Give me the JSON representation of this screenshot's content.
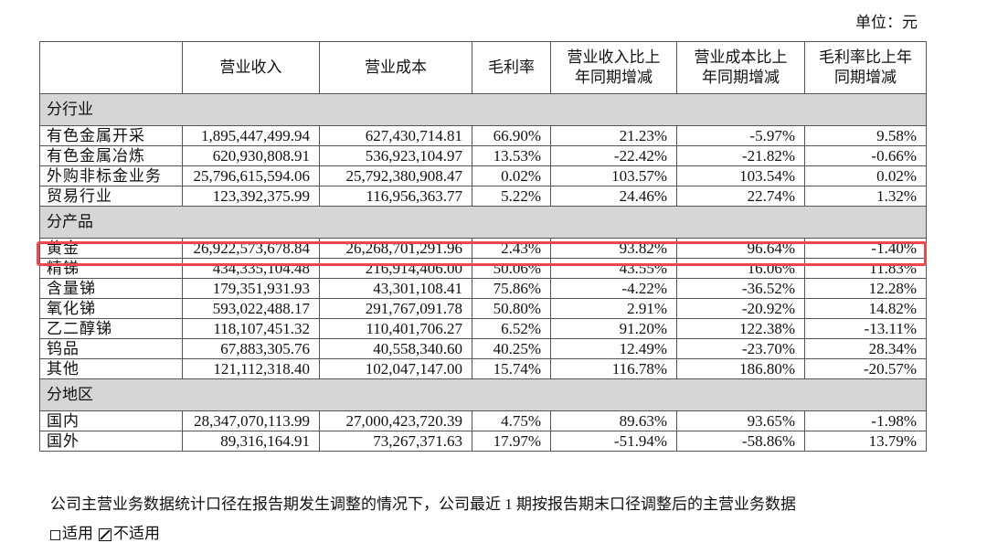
{
  "unit_label": "单位：元",
  "table": {
    "headers": [
      "",
      "营业收入",
      "营业成本",
      "毛利率",
      "营业收入比上年同期增减",
      "营业成本比上年同期增减",
      "毛利率比上年同期增减"
    ],
    "header_lines": [
      {
        "l1": "",
        "l2": ""
      },
      {
        "l1": "营业收入",
        "l2": ""
      },
      {
        "l1": "营业成本",
        "l2": ""
      },
      {
        "l1": "毛利率",
        "l2": ""
      },
      {
        "l1": "营业收入比上",
        "l2": "年同期增减"
      },
      {
        "l1": "营业成本比上",
        "l2": "年同期增减"
      },
      {
        "l1": "毛利率比上年",
        "l2": "同期增减"
      }
    ],
    "groups": [
      {
        "title": "分行业",
        "rows": [
          [
            "有色金属开采",
            "1,895,447,499.94",
            "627,430,714.81",
            "66.90%",
            "21.23%",
            "-5.97%",
            "9.58%"
          ],
          [
            "有色金属冶炼",
            "620,930,808.91",
            "536,923,104.97",
            "13.53%",
            "-22.42%",
            "-21.82%",
            "-0.66%"
          ],
          [
            "外购非标金业务",
            "25,796,615,594.06",
            "25,792,380,908.47",
            "0.02%",
            "103.57%",
            "103.54%",
            "0.02%"
          ],
          [
            "贸易行业",
            "123,392,375.99",
            "116,956,363.77",
            "5.22%",
            "24.46%",
            "22.74%",
            "1.32%"
          ]
        ]
      },
      {
        "title": "分产品",
        "rows": [
          [
            "黄金",
            "26,922,573,678.84",
            "26,268,701,291.96",
            "2.43%",
            "93.82%",
            "96.64%",
            "-1.40%"
          ],
          [
            "精锑",
            "434,335,104.48",
            "216,914,406.00",
            "50.06%",
            "43.55%",
            "16.06%",
            "11.83%"
          ],
          [
            "含量锑",
            "179,351,931.93",
            "43,301,108.41",
            "75.86%",
            "-4.22%",
            "-36.52%",
            "12.28%"
          ],
          [
            "氧化锑",
            "593,022,488.17",
            "291,767,091.78",
            "50.80%",
            "2.91%",
            "-20.92%",
            "14.82%"
          ],
          [
            "乙二醇锑",
            "118,107,451.32",
            "110,401,706.27",
            "6.52%",
            "91.20%",
            "122.38%",
            "-13.11%"
          ],
          [
            "钨品",
            "67,883,305.76",
            "40,558,340.60",
            "40.25%",
            "12.49%",
            "-23.70%",
            "28.34%"
          ],
          [
            "其他",
            "121,112,318.40",
            "102,047,147.00",
            "15.74%",
            "116.78%",
            "186.80%",
            "-20.57%"
          ]
        ]
      },
      {
        "title": "分地区",
        "rows": [
          [
            "国内",
            "28,347,070,113.99",
            "27,000,423,720.39",
            "4.75%",
            "89.63%",
            "93.65%",
            "-1.98%"
          ],
          [
            "国外",
            "89,316,164.91",
            "73,267,371.63",
            "17.97%",
            "-51.94%",
            "-58.86%",
            "13.79%"
          ]
        ]
      }
    ],
    "highlighted_row": "黄金",
    "highlight_color": "#f0484d",
    "group_bg_color": "#d6d6d6"
  },
  "note_text": "公司主营业务数据统计口径在报告期发生调整的情况下，公司最近 1 期按报告期末口径调整后的主营业务数据",
  "options": {
    "applicable_label": "适用",
    "not_applicable_label": "不适用",
    "selected": "不适用"
  }
}
